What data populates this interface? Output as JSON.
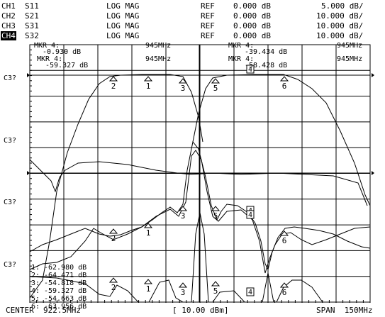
{
  "channels": [
    {
      "id": "CH1",
      "param": "S11",
      "format": "LOG MAG",
      "ref_label": "REF",
      "ref": "0.000 dB",
      "scale": "5.000 dB/",
      "active": false
    },
    {
      "id": "CH2",
      "param": "S21",
      "format": "LOG MAG",
      "ref_label": "REF",
      "ref": "0.000 dB",
      "scale": "10.000 dB/",
      "active": false
    },
    {
      "id": "CH3",
      "param": "S31",
      "format": "LOG MAG",
      "ref_label": "REF",
      "ref": "0.000 dB",
      "scale": "10.000 dB/",
      "active": false
    },
    {
      "id": "CH4",
      "param": "S32",
      "format": "LOG MAG",
      "ref_label": "REF",
      "ref": "0.000 dB",
      "scale": "10.000 dB/",
      "active": true
    }
  ],
  "marker_readouts": {
    "left_top": {
      "label": "MKR  4:",
      "value": "-0.930  dB",
      "freq": "945MHz"
    },
    "left_bottom": {
      "label": "MKR  4:",
      "value": "-59.327  dB",
      "freq": "945MHz"
    },
    "right_top": {
      "label": "MKR  4:",
      "value": "-39.434  dB",
      "freq": "945MHz"
    },
    "right_bottom": {
      "label": "MKR  4:",
      "value": "-58.428  dB",
      "freq": "945MHz"
    }
  },
  "left_labels": [
    "C3?",
    "C3?",
    "C3?",
    "C3?"
  ],
  "marker_list": [
    {
      "num": "1:",
      "value": "-62.980  dB"
    },
    {
      "num": "2:",
      "value": "-64.471  dB"
    },
    {
      "num": "3:",
      "value": "-54.818  dB"
    },
    {
      "num": "4:",
      "value": "-59.327  dB"
    },
    {
      "num": "5:",
      "value": "-54.663  dB"
    },
    {
      "num": "6:",
      "value": "-63.956  dB"
    }
  ],
  "footer": {
    "center": "CENTER  922.5MHz",
    "power": "[ 10.00 dBm]",
    "span": "SPAN  150MHz"
  },
  "markers": {
    "triangle_labels": [
      "1",
      "2",
      "3",
      "5",
      "6"
    ],
    "box_label": "4"
  },
  "colors": {
    "trace": "#000000",
    "background": "#ffffff",
    "grid": "#000000"
  }
}
